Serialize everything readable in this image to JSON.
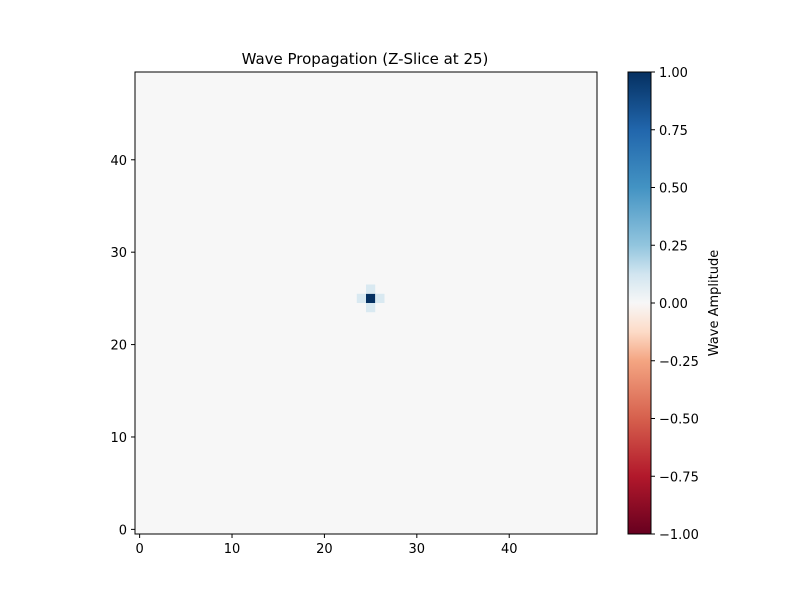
{
  "chart_data": {
    "type": "heatmap",
    "title": "Wave Propagation (Z-Slice at 25)",
    "xlabel": "",
    "ylabel": "",
    "grid_shape": [
      50,
      50
    ],
    "xlim": [
      -0.5,
      49.5
    ],
    "ylim": [
      -0.5,
      49.5
    ],
    "x_ticks": [
      0,
      10,
      20,
      30,
      40
    ],
    "y_ticks": [
      0,
      10,
      20,
      30,
      40
    ],
    "background_value": 0.0,
    "nonzero_cells": [
      {
        "x": 25,
        "y": 25,
        "value": 1.0
      },
      {
        "x": 24,
        "y": 25,
        "value": 0.1
      },
      {
        "x": 26,
        "y": 25,
        "value": 0.1
      },
      {
        "x": 25,
        "y": 24,
        "value": 0.1
      },
      {
        "x": 25,
        "y": 26,
        "value": 0.1
      }
    ],
    "colormap": "RdBu",
    "colorbar": {
      "label": "Wave Amplitude",
      "vmin": -1.0,
      "vmax": 1.0,
      "ticks": [
        1.0,
        0.75,
        0.5,
        0.25,
        0.0,
        -0.25,
        -0.5,
        -0.75,
        -1.0
      ],
      "tick_labels": [
        "1.00",
        "0.75",
        "0.50",
        "0.25",
        "0.00",
        "−0.25",
        "−0.50",
        "−0.75",
        "−1.00"
      ]
    },
    "grid": false
  },
  "colors": {
    "colormap_stops": [
      {
        "v": -1.0,
        "color": "#67001f"
      },
      {
        "v": -0.75,
        "color": "#b2182b"
      },
      {
        "v": -0.5,
        "color": "#d6604d"
      },
      {
        "v": -0.25,
        "color": "#f4a582"
      },
      {
        "v": -0.125,
        "color": "#fddbc7"
      },
      {
        "v": 0.0,
        "color": "#f7f7f7"
      },
      {
        "v": 0.125,
        "color": "#d1e5f0"
      },
      {
        "v": 0.25,
        "color": "#92c5de"
      },
      {
        "v": 0.5,
        "color": "#4393c3"
      },
      {
        "v": 0.75,
        "color": "#2166ac"
      },
      {
        "v": 1.0,
        "color": "#053061"
      }
    ]
  }
}
